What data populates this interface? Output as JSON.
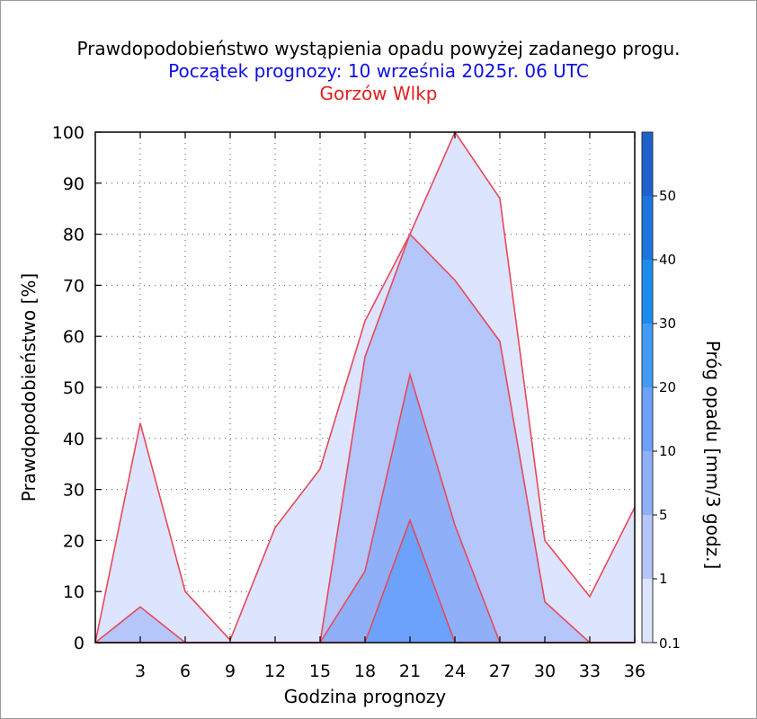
{
  "titles": {
    "line1": "Prawdopodobieństwo wystąpienia opadu powyżej zadanego progu.",
    "line2": "Początek prognozy: 10 września 2025r. 06 UTC",
    "line3": "Gorzów Wlkp"
  },
  "colors": {
    "line1": "#000000",
    "line2": "#1010e0",
    "line3": "#e02020",
    "outline": "#e8485a"
  },
  "chart_data": {
    "type": "area",
    "xlabel": "Godzina prognozy",
    "ylabel": "Prawdopodobieństwo [%]",
    "xlim": [
      0,
      36
    ],
    "ylim": [
      0,
      100
    ],
    "x_ticks": [
      3,
      6,
      9,
      12,
      15,
      18,
      21,
      24,
      27,
      30,
      33,
      36
    ],
    "y_ticks": [
      0,
      10,
      20,
      30,
      40,
      50,
      60,
      70,
      80,
      90,
      100
    ],
    "grid": true,
    "x": [
      0,
      3,
      6,
      9,
      12,
      15,
      18,
      21,
      24,
      27,
      30,
      33,
      36
    ],
    "series": [
      {
        "name": "0.1",
        "color": "#dde4fd",
        "values": [
          0,
          43,
          10,
          0.5,
          22.5,
          34,
          63,
          80,
          100,
          87,
          20,
          9,
          26.5
        ]
      },
      {
        "name": "1",
        "color": "#b4c6fa",
        "values": [
          0,
          7,
          0,
          0,
          0,
          0,
          56,
          80,
          71,
          59,
          8,
          0,
          0
        ]
      },
      {
        "name": "5",
        "color": "#8fb0f8",
        "values": [
          0,
          0,
          0,
          0,
          0,
          0,
          14,
          52.5,
          23,
          0,
          0,
          0,
          0
        ]
      },
      {
        "name": "10",
        "color": "#6ca2fc",
        "values": [
          0,
          0,
          0,
          0,
          0,
          0,
          0,
          24,
          0,
          0,
          0,
          0,
          0
        ]
      }
    ],
    "colorbar": {
      "label": "Próg opadu [mm/3 godz.]",
      "tick_labels": [
        "0.1",
        "1",
        "5",
        "10",
        "20",
        "30",
        "40",
        "50"
      ],
      "colors": [
        "#dde4fd",
        "#b4c6fa",
        "#8fb0f8",
        "#6ca2fc",
        "#3f9cf6",
        "#1a8cf0",
        "#1c74e0",
        "#1e60cc",
        "#1448b0"
      ]
    }
  }
}
